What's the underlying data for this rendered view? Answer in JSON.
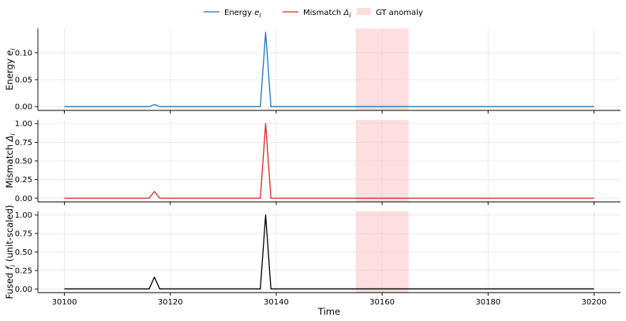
{
  "legend": {
    "items": [
      {
        "label": "Energy e_i",
        "math": "e",
        "sub": "i",
        "prefix": "Energy ",
        "color": "#1f77b4",
        "kind": "line"
      },
      {
        "label": "Mismatch Δ_i",
        "math": "Δ",
        "sub": "i",
        "prefix": "Mismatch ",
        "color": "#d62728",
        "kind": "line"
      },
      {
        "label": "GT anomaly",
        "color": "#ffb3b3",
        "kind": "patch"
      }
    ]
  },
  "chart_data": [
    {
      "type": "line",
      "ylabel": "Energy e_i",
      "ylabel_prefix": "Energy ",
      "ylabel_math": "e",
      "ylabel_sub": "i",
      "ylabel_suffix": "",
      "ylim": [
        -0.007,
        0.145
      ],
      "yticks": [
        0.0,
        0.05,
        0.1
      ],
      "ytick_labels": [
        "0.00",
        "0.05",
        "0.10"
      ],
      "series": [
        {
          "name": "Energy e_i",
          "color": "#1f77b4",
          "x": [
            30100,
            30116,
            30117,
            30118,
            30137,
            30138,
            30139,
            30200
          ],
          "y": [
            0,
            0,
            0.004,
            0,
            0,
            0.138,
            0,
            0
          ]
        }
      ],
      "gt_anomaly": [
        30155,
        30165
      ],
      "xlim": [
        30095,
        30205
      ]
    },
    {
      "type": "line",
      "ylabel": "Mismatch Δ_i",
      "ylabel_prefix": "Mismatch ",
      "ylabel_math": "Δ",
      "ylabel_sub": "i",
      "ylabel_suffix": "",
      "ylim": [
        -0.05,
        1.05
      ],
      "yticks": [
        0.0,
        0.25,
        0.5,
        0.75,
        1.0
      ],
      "ytick_labels": [
        "0.00",
        "0.25",
        "0.50",
        "0.75",
        "1.00"
      ],
      "series": [
        {
          "name": "Mismatch Δ_i",
          "color": "#d62728",
          "x": [
            30100,
            30116,
            30117,
            30118,
            30137,
            30138,
            30139,
            30200
          ],
          "y": [
            0,
            0,
            0.09,
            0,
            0,
            1.0,
            0,
            0
          ]
        }
      ],
      "gt_anomaly": [
        30155,
        30165
      ],
      "xlim": [
        30095,
        30205
      ]
    },
    {
      "type": "line",
      "ylabel": "Fused f_i (unit-scaled)",
      "ylabel_prefix": "Fused ",
      "ylabel_math": "f",
      "ylabel_sub": "i",
      "ylabel_suffix": " (unit-scaled)",
      "ylim": [
        -0.05,
        1.05
      ],
      "yticks": [
        0.0,
        0.25,
        0.5,
        0.75,
        1.0
      ],
      "ytick_labels": [
        "0.00",
        "0.25",
        "0.50",
        "0.75",
        "1.00"
      ],
      "series": [
        {
          "color": "#000000",
          "x": [
            30100,
            30116,
            30117,
            30118,
            30137,
            30138,
            30139,
            30200
          ],
          "y": [
            0,
            0,
            0.16,
            0,
            0,
            1.0,
            0,
            0
          ]
        }
      ],
      "gt_anomaly": [
        30155,
        30165
      ],
      "xlim": [
        30095,
        30205
      ],
      "xlabel": "Time",
      "xticks": [
        30100,
        30120,
        30140,
        30160,
        30180,
        30200
      ],
      "xtick_labels": [
        "30100",
        "30120",
        "30140",
        "30160",
        "30180",
        "30200"
      ]
    }
  ]
}
